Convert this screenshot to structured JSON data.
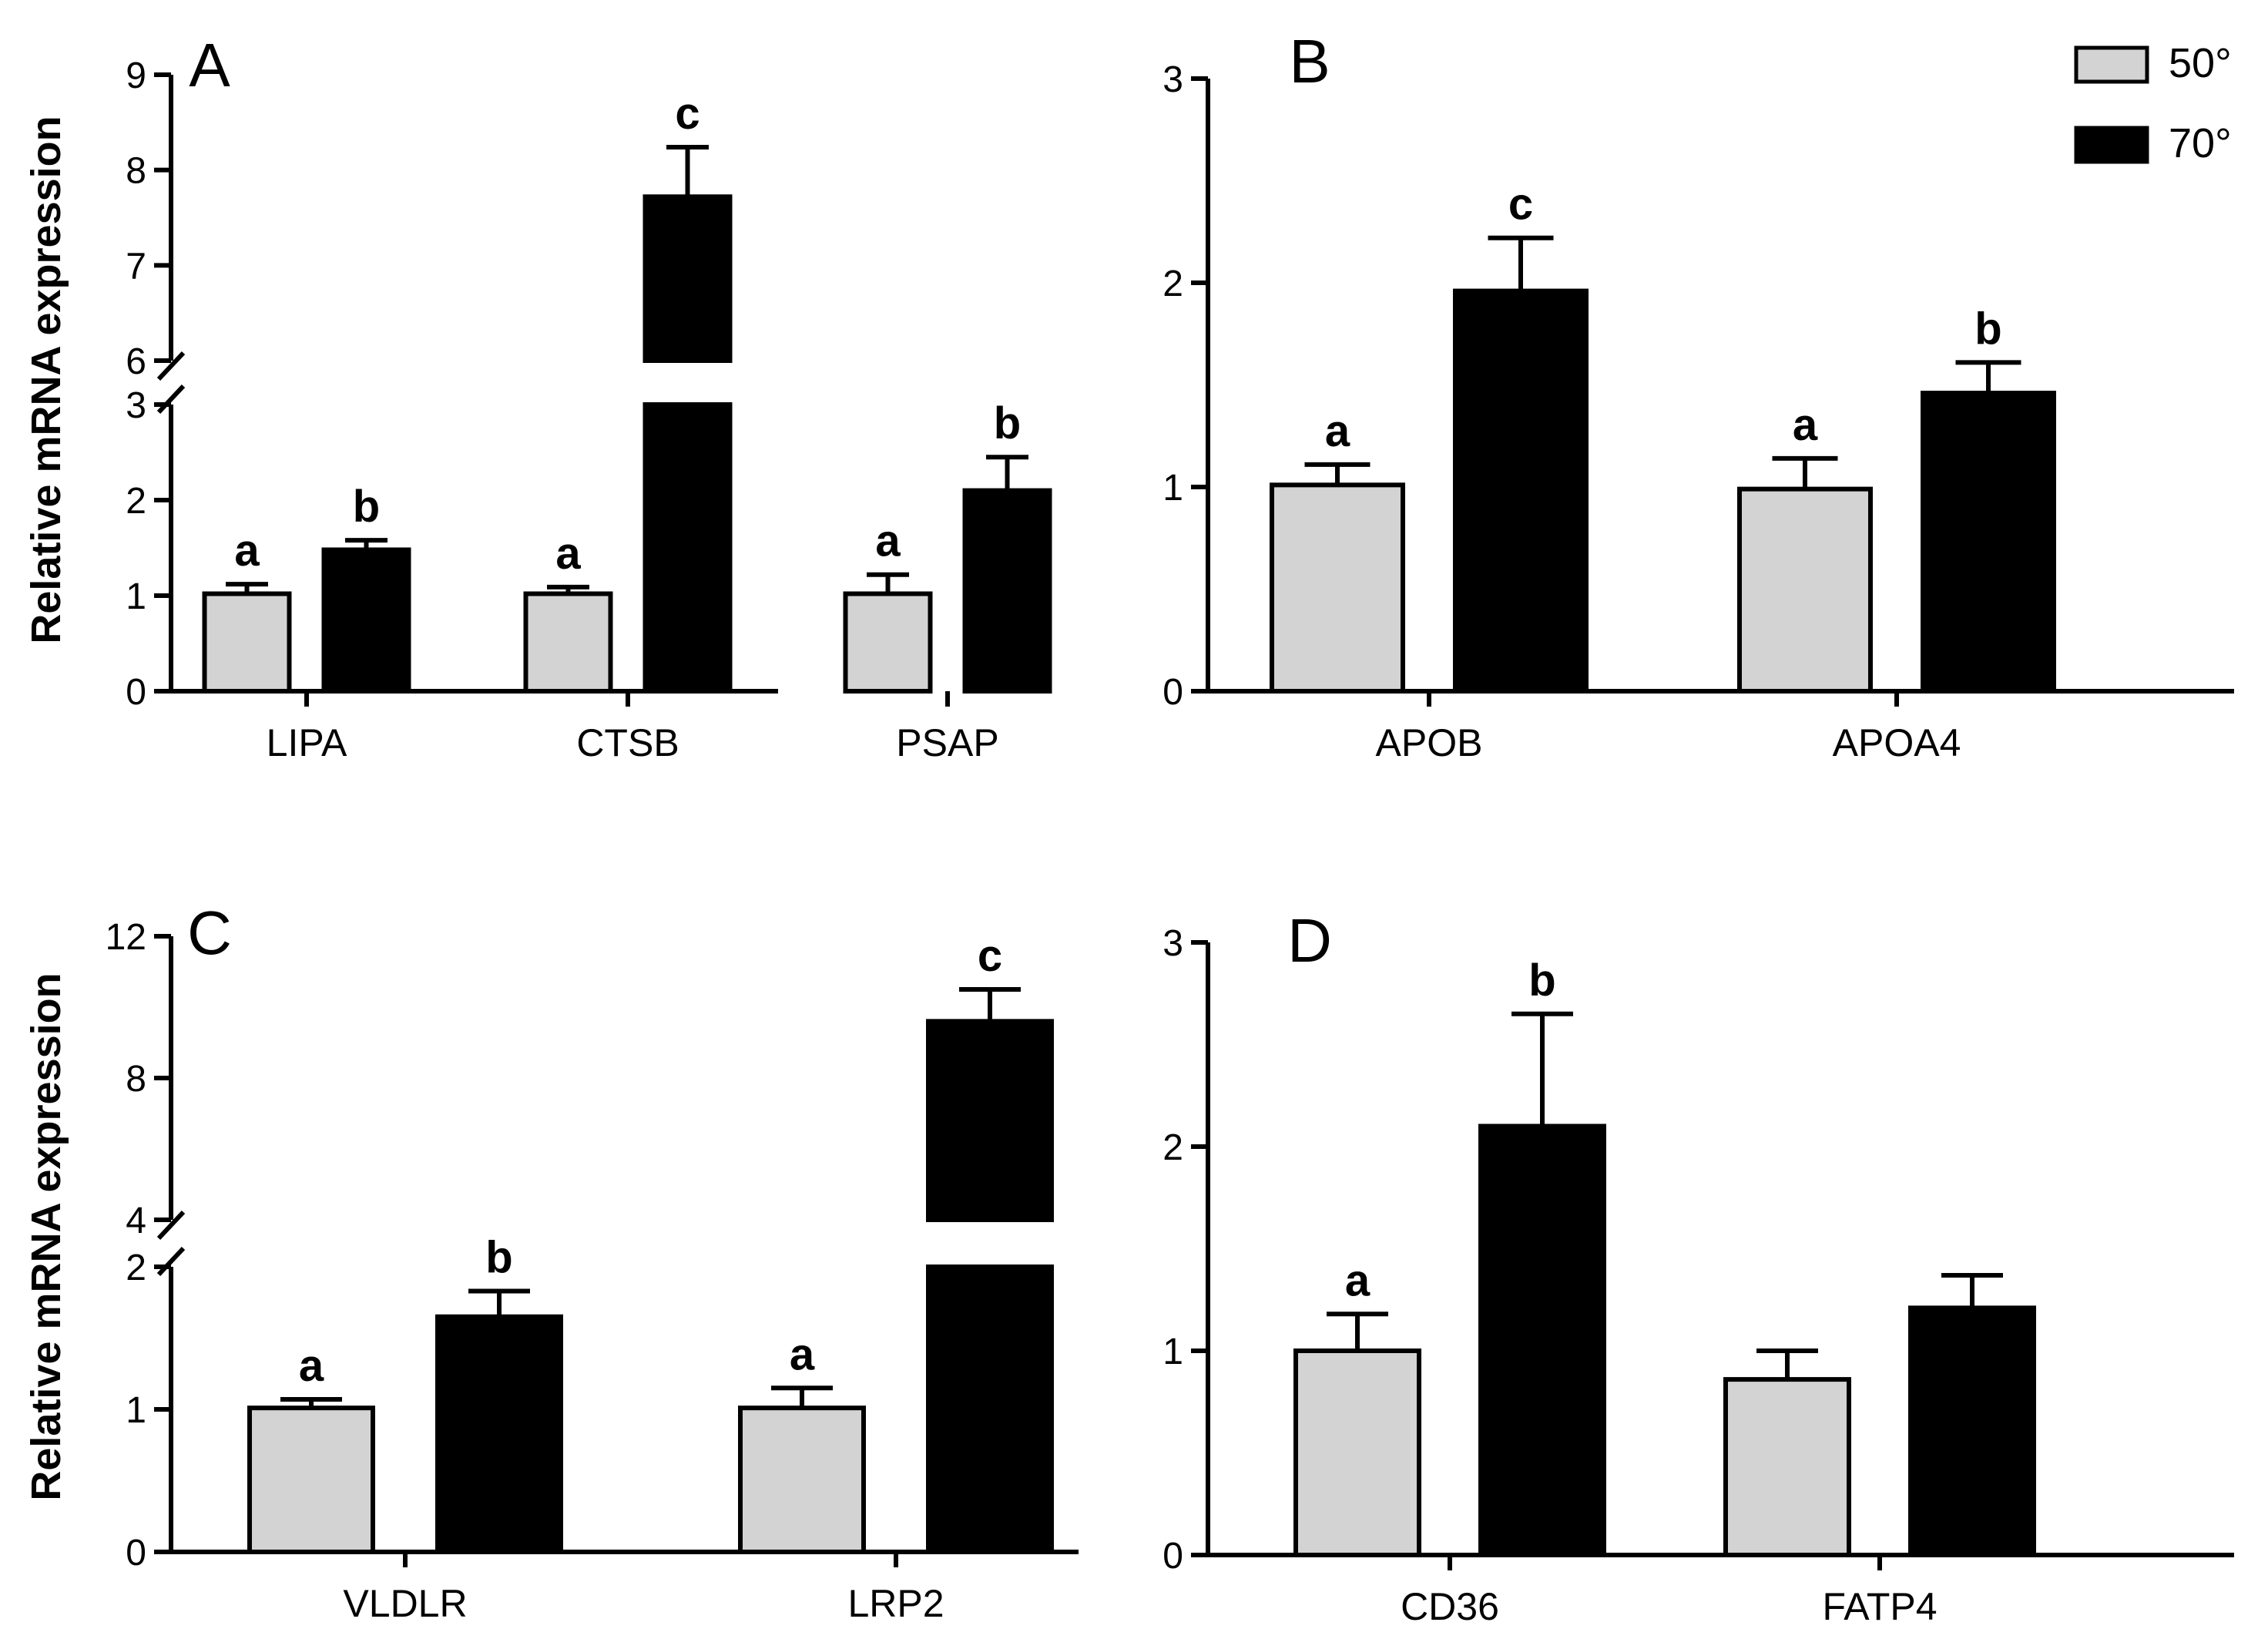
{
  "figure": {
    "ylabel": "Relative mRNA expression",
    "legend": [
      {
        "name": "50°",
        "color": "#d3d3d3"
      },
      {
        "name": "70°",
        "color": "#000000"
      }
    ]
  },
  "chart_data": [
    {
      "panel": "A",
      "type": "bar",
      "ylabel": "Relative mRNA expression",
      "categories": [
        "LIPA",
        "CTSB",
        "PSAP"
      ],
      "y_axis_break": {
        "lower_range": [
          0,
          3
        ],
        "upper_range": [
          6,
          9
        ]
      },
      "yticks_lower": [
        0,
        1,
        2,
        3
      ],
      "yticks_upper": [
        6,
        7,
        8,
        9
      ],
      "series": [
        {
          "name": "50°",
          "color": "#d3d3d3",
          "values": [
            1.02,
            1.02,
            1.02
          ],
          "errors": [
            0.1,
            0.07,
            0.2
          ],
          "sig": [
            "a",
            "a",
            "a"
          ]
        },
        {
          "name": "70°",
          "color": "#000000",
          "values": [
            1.48,
            7.72,
            2.1
          ],
          "errors": [
            0.1,
            0.52,
            0.35
          ],
          "sig": [
            "b",
            "c",
            "b"
          ]
        }
      ]
    },
    {
      "panel": "B",
      "type": "bar",
      "categories": [
        "APOB",
        "APOA4"
      ],
      "ylim": [
        0,
        3
      ],
      "yticks": [
        0,
        1,
        2,
        3
      ],
      "series": [
        {
          "name": "50°",
          "color": "#d3d3d3",
          "values": [
            1.01,
            0.99
          ],
          "errors": [
            0.1,
            0.15
          ],
          "sig": [
            "a",
            "a"
          ]
        },
        {
          "name": "70°",
          "color": "#000000",
          "values": [
            1.96,
            1.46
          ],
          "errors": [
            0.26,
            0.15
          ],
          "sig": [
            "c",
            "b"
          ]
        }
      ]
    },
    {
      "panel": "C",
      "type": "bar",
      "ylabel": "Relative mRNA expression",
      "categories": [
        "VLDLR",
        "LRP2"
      ],
      "y_axis_break": {
        "lower_range": [
          0,
          2
        ],
        "upper_range": [
          4,
          12
        ]
      },
      "yticks_lower": [
        0,
        1,
        2
      ],
      "yticks_upper": [
        4,
        8,
        12
      ],
      "series": [
        {
          "name": "50°",
          "color": "#d3d3d3",
          "values": [
            1.01,
            1.01
          ],
          "errors": [
            0.06,
            0.14
          ],
          "sig": [
            "a",
            "a"
          ]
        },
        {
          "name": "70°",
          "color": "#000000",
          "values": [
            1.65,
            9.6
          ],
          "errors": [
            0.18,
            0.9
          ],
          "sig": [
            "b",
            "c"
          ]
        }
      ]
    },
    {
      "panel": "D",
      "type": "bar",
      "categories": [
        "CD36",
        "FATP4"
      ],
      "ylim": [
        0,
        3
      ],
      "yticks": [
        0,
        1,
        2,
        3
      ],
      "series": [
        {
          "name": "50°",
          "color": "#d3d3d3",
          "values": [
            1.0,
            0.86
          ],
          "errors": [
            0.18,
            0.14
          ],
          "sig": [
            "a",
            ""
          ]
        },
        {
          "name": "70°",
          "color": "#000000",
          "values": [
            2.1,
            1.21
          ],
          "errors": [
            0.55,
            0.16
          ],
          "sig": [
            "b",
            ""
          ]
        }
      ]
    }
  ]
}
